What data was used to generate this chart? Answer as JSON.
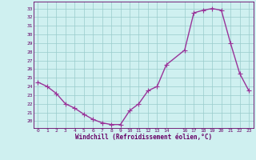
{
  "x": [
    0,
    1,
    2,
    3,
    4,
    5,
    6,
    7,
    8,
    9,
    10,
    11,
    12,
    13,
    14,
    16,
    17,
    18,
    19,
    20,
    21,
    22,
    23
  ],
  "y": [
    24.5,
    24.0,
    23.2,
    22.0,
    21.5,
    20.8,
    20.2,
    19.8,
    19.6,
    19.6,
    21.2,
    22.0,
    23.5,
    24.0,
    26.5,
    28.2,
    32.5,
    32.8,
    33.0,
    32.8,
    29.0,
    25.5,
    23.5
  ],
  "xlabel": "Windchill (Refroidissement éolien,°C)",
  "xlim": [
    -0.5,
    23.5
  ],
  "ylim": [
    19.2,
    33.8
  ],
  "yticks": [
    20,
    21,
    22,
    23,
    24,
    25,
    26,
    27,
    28,
    29,
    30,
    31,
    32,
    33
  ],
  "xticks": [
    0,
    1,
    2,
    3,
    4,
    5,
    6,
    7,
    8,
    9,
    10,
    11,
    12,
    13,
    14,
    16,
    17,
    18,
    19,
    20,
    21,
    22,
    23
  ],
  "line_color": "#993399",
  "marker": "+",
  "bg_color": "#cff0f0",
  "grid_color": "#99cccc",
  "tick_label_color": "#660066",
  "xlabel_color": "#660066",
  "marker_size": 4,
  "linewidth": 1.0
}
